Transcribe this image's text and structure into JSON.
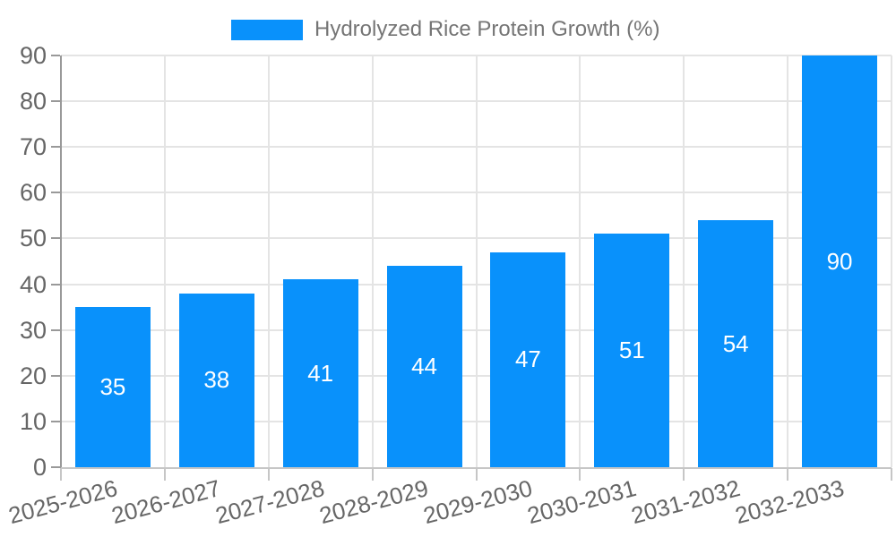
{
  "legend": {
    "label": "Hydrolyzed Rice Protein Growth (%)"
  },
  "chart_data": {
    "type": "bar",
    "title": "",
    "series_name": "Hydrolyzed Rice Protein Growth (%)",
    "categories": [
      "2025-2026",
      "2026-2027",
      "2027-2028",
      "2028-2029",
      "2029-2030",
      "2030-2031",
      "2031-2032",
      "2032-2033"
    ],
    "values": [
      35,
      38,
      41,
      44,
      47,
      51,
      54,
      90
    ],
    "bar_labels": [
      "35",
      "38",
      "41",
      "44",
      "47",
      "51",
      "54",
      "90"
    ],
    "xlabel": "",
    "ylabel": "",
    "ylim": [
      0,
      90
    ],
    "ytick_step": 10,
    "yticks": [
      0,
      10,
      20,
      30,
      40,
      50,
      60,
      70,
      80,
      90
    ],
    "grid": true,
    "legend_position": "top-center",
    "colors": {
      "bar": "#0991fb",
      "bar_value_text": "#ffffff",
      "grid": "#e4e4e4",
      "y_axis": "#999999",
      "x_axis": "#c6c6c6",
      "tick_label": "#666666",
      "legend_text": "#757575"
    }
  }
}
